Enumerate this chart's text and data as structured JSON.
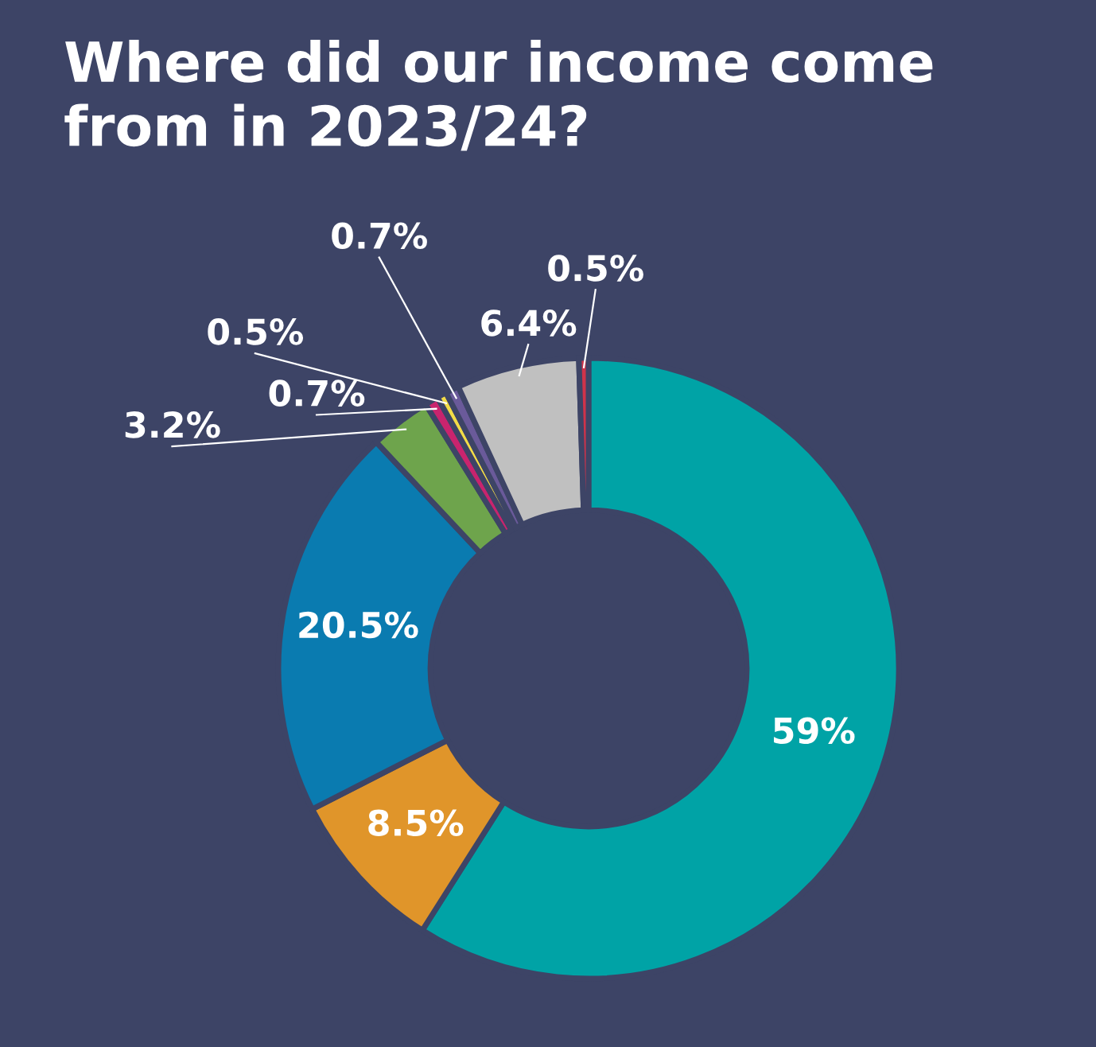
{
  "chart_data": {
    "type": "donut",
    "title": "Where did our income come\nfrom in 2023/24?",
    "categories": [
      null,
      null,
      null,
      null,
      null,
      null,
      null,
      null,
      null
    ],
    "values": [
      59,
      8.5,
      20.5,
      3.2,
      0.7,
      0.5,
      0.7,
      6.4,
      0.5
    ],
    "value_labels": [
      "59%",
      "8.5%",
      "20.5%",
      "3.2%",
      "0.7%",
      "0.5%",
      "0.7%",
      "6.4%",
      "0.5%"
    ],
    "colors": [
      "#00a3a6",
      "#e0952a",
      "#0a7bb0",
      "#6ea44c",
      "#c8246e",
      "#f2dc47",
      "#6a5a9a",
      "#c0c0c0",
      "#d0334a"
    ],
    "legend": false
  }
}
